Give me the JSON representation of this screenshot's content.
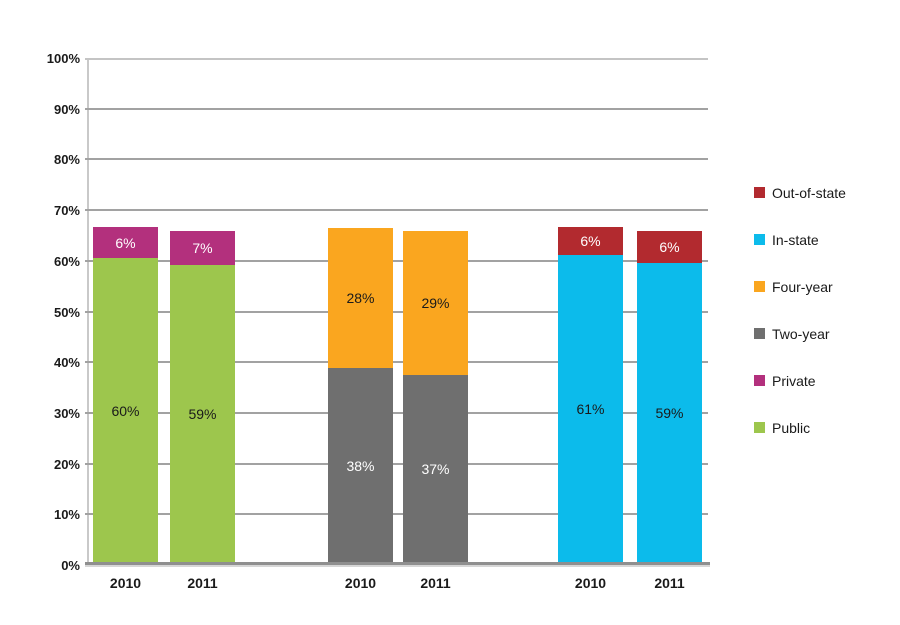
{
  "chart_data": {
    "type": "bar",
    "stacked": true,
    "title": "",
    "xlabel": "",
    "ylabel": "",
    "ylim": [
      0,
      100
    ],
    "grid": true,
    "legend_position": "right",
    "y_ticks": [
      "0%",
      "10%",
      "20%",
      "30%",
      "40%",
      "50%",
      "60%",
      "70%",
      "80%",
      "90%",
      "100%"
    ],
    "series": {
      "Public": {
        "color": "#9DC64D",
        "label_color": "#1a1a1a"
      },
      "Private": {
        "color": "#B3307D",
        "label_color": "#ffffff"
      },
      "Two-year": {
        "color": "#6F6F6F",
        "label_color": "#ffffff"
      },
      "Four-year": {
        "color": "#FAA61F",
        "label_color": "#1a1a1a"
      },
      "In-state": {
        "color": "#0CBBEB",
        "label_color": "#1a1a1a"
      },
      "Out-of-state": {
        "color": "#B22A2F",
        "label_color": "#ffffff"
      }
    },
    "groups": [
      {
        "name": "public-private",
        "bars": [
          {
            "category": "2010",
            "segments": [
              {
                "series": "Public",
                "value": 60,
                "label": "60%",
                "height_pct": 60.2
              },
              {
                "series": "Private",
                "value": 6,
                "label": "6%",
                "height_pct": 6.1
              }
            ]
          },
          {
            "category": "2011",
            "segments": [
              {
                "series": "Public",
                "value": 59,
                "label": "59%",
                "height_pct": 58.8
              },
              {
                "series": "Private",
                "value": 7,
                "label": "7%",
                "height_pct": 6.7
              }
            ]
          }
        ]
      },
      {
        "name": "two-year-four-year",
        "bars": [
          {
            "category": "2010",
            "segments": [
              {
                "series": "Two-year",
                "value": 38,
                "label": "38%",
                "height_pct": 38.5
              },
              {
                "series": "Four-year",
                "value": 28,
                "label": "28%",
                "height_pct": 27.6
              }
            ]
          },
          {
            "category": "2011",
            "segments": [
              {
                "series": "Two-year",
                "value": 37,
                "label": "37%",
                "height_pct": 37.1
              },
              {
                "series": "Four-year",
                "value": 29,
                "label": "29%",
                "height_pct": 28.4
              }
            ]
          }
        ]
      },
      {
        "name": "in-state-out-of-state",
        "bars": [
          {
            "category": "2010",
            "segments": [
              {
                "series": "In-state",
                "value": 61,
                "label": "61%",
                "height_pct": 60.7
              },
              {
                "series": "Out-of-state",
                "value": 6,
                "label": "6%",
                "height_pct": 5.6
              }
            ]
          },
          {
            "category": "2011",
            "segments": [
              {
                "series": "In-state",
                "value": 59,
                "label": "59%",
                "height_pct": 59.2
              },
              {
                "series": "Out-of-state",
                "value": 6,
                "label": "6%",
                "height_pct": 6.3
              }
            ]
          }
        ]
      }
    ],
    "legend": [
      "Out-of-state",
      "In-state",
      "Four-year",
      "Two-year",
      "Private",
      "Public"
    ]
  }
}
